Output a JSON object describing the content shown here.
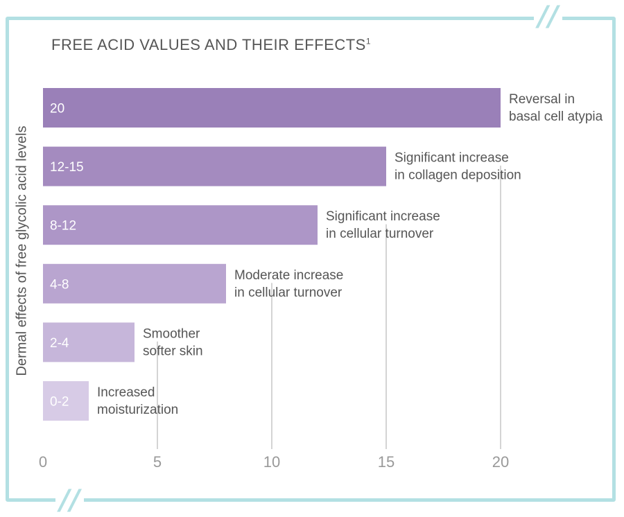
{
  "chart_data": {
    "type": "bar",
    "orientation": "horizontal",
    "title": "FREE ACID VALUES AND THEIR EFFECTS",
    "title_superscript": "1",
    "xlabel": "",
    "ylabel": "Dermal effects of free glycolic acid levels",
    "xlim": [
      0,
      20
    ],
    "xticks": [
      "0",
      "5",
      "10",
      "15",
      "20"
    ],
    "grid": "vertical lines at ticks",
    "categories": [
      "20",
      "12-15",
      "8-12",
      "4-8",
      "2-4",
      "0-2"
    ],
    "values": [
      20,
      15,
      12,
      8,
      4,
      2
    ],
    "effects": [
      [
        "Reversal in",
        "basal cell atypia"
      ],
      [
        "Significant increase",
        "in collagen deposition"
      ],
      [
        "Significant increase",
        "in cellular turnover"
      ],
      [
        "Moderate increase",
        "in cellular turnover"
      ],
      [
        "Smoother",
        "softer skin"
      ],
      [
        "Increased",
        "moisturization"
      ]
    ],
    "colors": [
      "#9a80b8",
      "#a48bbf",
      "#ad96c7",
      "#b9a5d0",
      "#c6b6da",
      "#d7cbe6"
    ]
  },
  "frame_color": "#b3e0e3"
}
